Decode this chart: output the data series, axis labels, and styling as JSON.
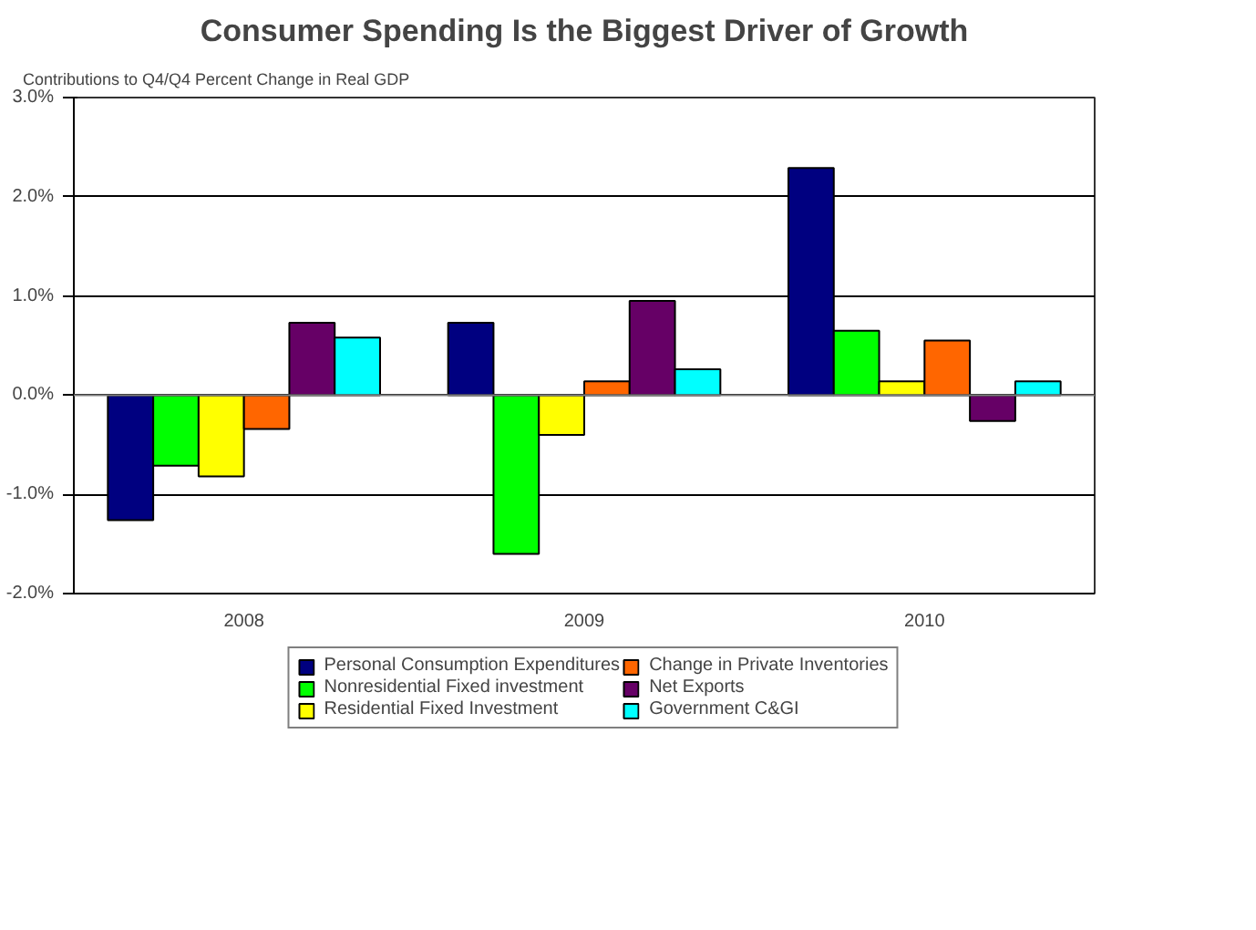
{
  "chart_data": {
    "type": "bar",
    "title": "Consumer Spending Is the Biggest Driver of Growth",
    "ylabel": "Contributions to Q4/Q4 Percent Change in Real GDP",
    "categories": [
      "2008",
      "2009",
      "2010"
    ],
    "series": [
      {
        "name": "Personal Consumption Expenditures",
        "color": "#000080",
        "values": [
          -1.26,
          0.73,
          2.29
        ]
      },
      {
        "name": "Nonresidential Fixed investment",
        "color": "#00ff00",
        "values": [
          -0.71,
          -1.6,
          0.65
        ]
      },
      {
        "name": "Residential Fixed Investment",
        "color": "#ffff00",
        "values": [
          -0.82,
          -0.4,
          0.14
        ]
      },
      {
        "name": "Change in Private Inventories",
        "color": "#ff6600",
        "values": [
          -0.34,
          0.14,
          0.55
        ]
      },
      {
        "name": "Net Exports",
        "color": "#660066",
        "values": [
          0.73,
          0.95,
          -0.26
        ]
      },
      {
        "name": "Government C&GI",
        "color": "#00ffff",
        "values": [
          0.58,
          0.26,
          0.14
        ]
      }
    ],
    "ylim": [
      -2,
      3
    ],
    "yticks": [
      {
        "value": -2,
        "label": "-2.0%"
      },
      {
        "value": -1,
        "label": "-1.0%"
      },
      {
        "value": 0,
        "label": "0.0%"
      },
      {
        "value": 1,
        "label": "1.0%"
      },
      {
        "value": 2,
        "label": "2.0%"
      },
      {
        "value": 3,
        "label": "3.0%"
      }
    ],
    "grid": "y",
    "legend": "bottom"
  }
}
